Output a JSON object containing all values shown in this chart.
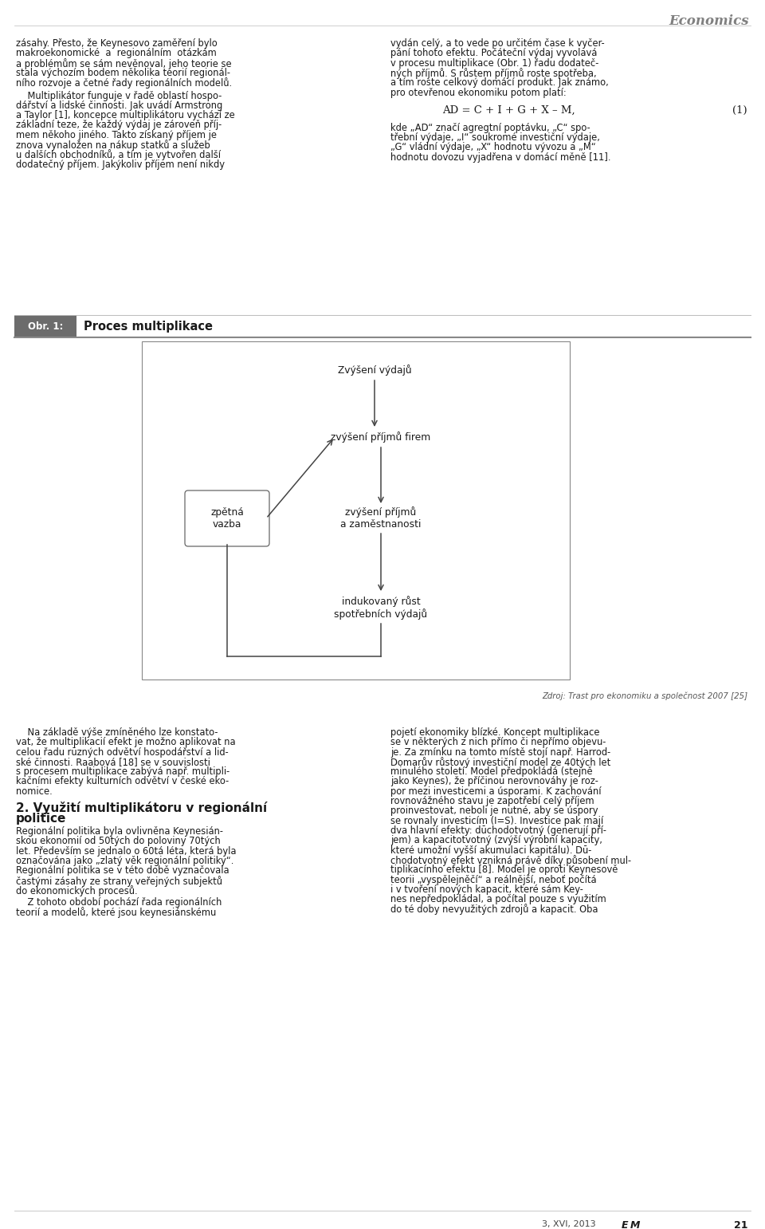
{
  "bg_color": "#ffffff",
  "header_text": "Economics",
  "header_color": "#808080",
  "text_color": "#1a1a1a",
  "figure_label": "Obr. 1:",
  "figure_title": "Proces multiplikace",
  "figure_label_bg": "#6c6c6c",
  "source_text": "Zdroj: Trast pro ekonomiku a společnost 2007 [25]",
  "node_top": "Zvýšení výdajů",
  "node_r1": "zvýšení příjmů firem",
  "node_r2": "zvýšení příjmů\na zaměstnanosti",
  "node_bot": "indukovaný růst\nspotřebních výdajů",
  "node_left": "zpětná\nvazba",
  "footer_left": "3, XVI, 2013",
  "footer_journal": "E M",
  "footer_page": "21",
  "left_lines": [
    "zásahy. Přesto, že Keynesovo zaměření bylo",
    "makroekonomické  a  regionálním  otázkám",
    "a problémům se sám nevěnoval, jeho teorie se",
    "stala výchozím bodem několika teorií regionál-",
    "ního rozvoje a četné řady regionálních modelů.",
    "",
    "    Multiplikátor funguje v řadě oblastí hospo-",
    "dářství a lidské činnosti. Jak uvádí Armstrong",
    "a Taylor [1], koncepce multiplikátoru vychází ze",
    "základní teze, že každý výdaj je zároveň příj-",
    "mem někoho jiného. Takto získaný příjem je",
    "znova vynaložen na nákup statků a služeb",
    "u dalších obchodníků, a tím je vytvořen další",
    "dodatečný příjem. Jakýkoliv příjem není nikdy"
  ],
  "right_lines": [
    "vydán celý, a to vede po určitém čase k vyčer-",
    "pání tohoto efektu. Počáteční výdaj vyvolavá",
    "v procesu multiplikace (Obr. 1) řadu dodateč-",
    "ných příjmů. S růstem příjmů roste spotřeba,",
    "a tím roste celkový domácí produkt. Jak známo,",
    "pro otevřenou ekonomiku potom platí:"
  ],
  "formula": "AD = C + I + G + X – M,",
  "formula_num": "(1)",
  "formula_lines": [
    "kde „AD“ značí agregtní poptávku, „C“ spo-",
    "třební výdaje, „I“ soukromé investiční výdaje,",
    "„G“ vládní výdaje, „X“ hodnotu vývozu a „M“",
    "hodnotu dovozu vyjadřena v domácí měně [11]."
  ],
  "bot_left_lines": [
    "    Na základě výše zmíněného lze konstato-",
    "vat, že multiplikacií efekt je možno aplikovat na",
    "celou řadu rūzných odvětví hospodářství a lid-",
    "ské činnosti. Raabová [18] se v souvislosti",
    "s procesem multiplikace zabývá např. multipli-",
    "kačními efekty kulturních odvětví v české eko-",
    "nomice."
  ],
  "section_title_1": "2. Využití multiplikátoru v regionální",
  "section_title_2": "politice",
  "bot_left_lines2": [
    "Regionální politika byla ovlivněna Keynesián-",
    "skou ekonomií od 50tých do poloviny 70tých",
    "let. Především se jednalo o 60tá léta, která byla",
    "označována jako „zlatý věk regionální politiky“.",
    "Regionální politika se v této době vyznačovala",
    "častými zásahy ze strany veřejných subjektů",
    "do ekonomických procesů.",
    "    Z tohoto období pochází řada regionálních",
    "teorií a modelů, které jsou keynesiánskému"
  ],
  "bot_right_lines": [
    "pojetí ekonomiky blízké. Koncept multiplikace",
    "se v některých z nich přímo či nepřímo objevu-",
    "je. Za zmínku na tomto místě stojí např. Harrod-",
    "Domarův růstový investiční model ze 40tých let",
    "minulého století. Model předpokládá (stejně",
    "jako Keynes), že příčinou nerovnováhy je roz-",
    "por mezi investicemi a úsporami. K zachování",
    "rovnovážného stavu je zapotřebí celý příjem",
    "proinvestovat, neboli je nutné, aby se úspory",
    "se rovnaly investicím (I=S). Investice pak mají",
    "dva hlavní efekty: dūchodotvotný (generují pří-",
    "jem) a kapacitotvotný (zvýší výrobní kapacity,",
    "které umožní vyšší akumulaci kapitálu). Dū-",
    "chodotvotný efekt vznikná právě díky působení mul-",
    "tiplikacínho efektu [8]. Model je oproti Keynesově",
    "teorii „vyspělejněčí“ a reálnější, neboť počítá",
    "i v tvoření nových kapacit, které sám Key-",
    "nes nepředpokládal, a počítal pouze s využitím",
    "do té doby nevyužitých zdrojů a kapacit. Oba"
  ]
}
